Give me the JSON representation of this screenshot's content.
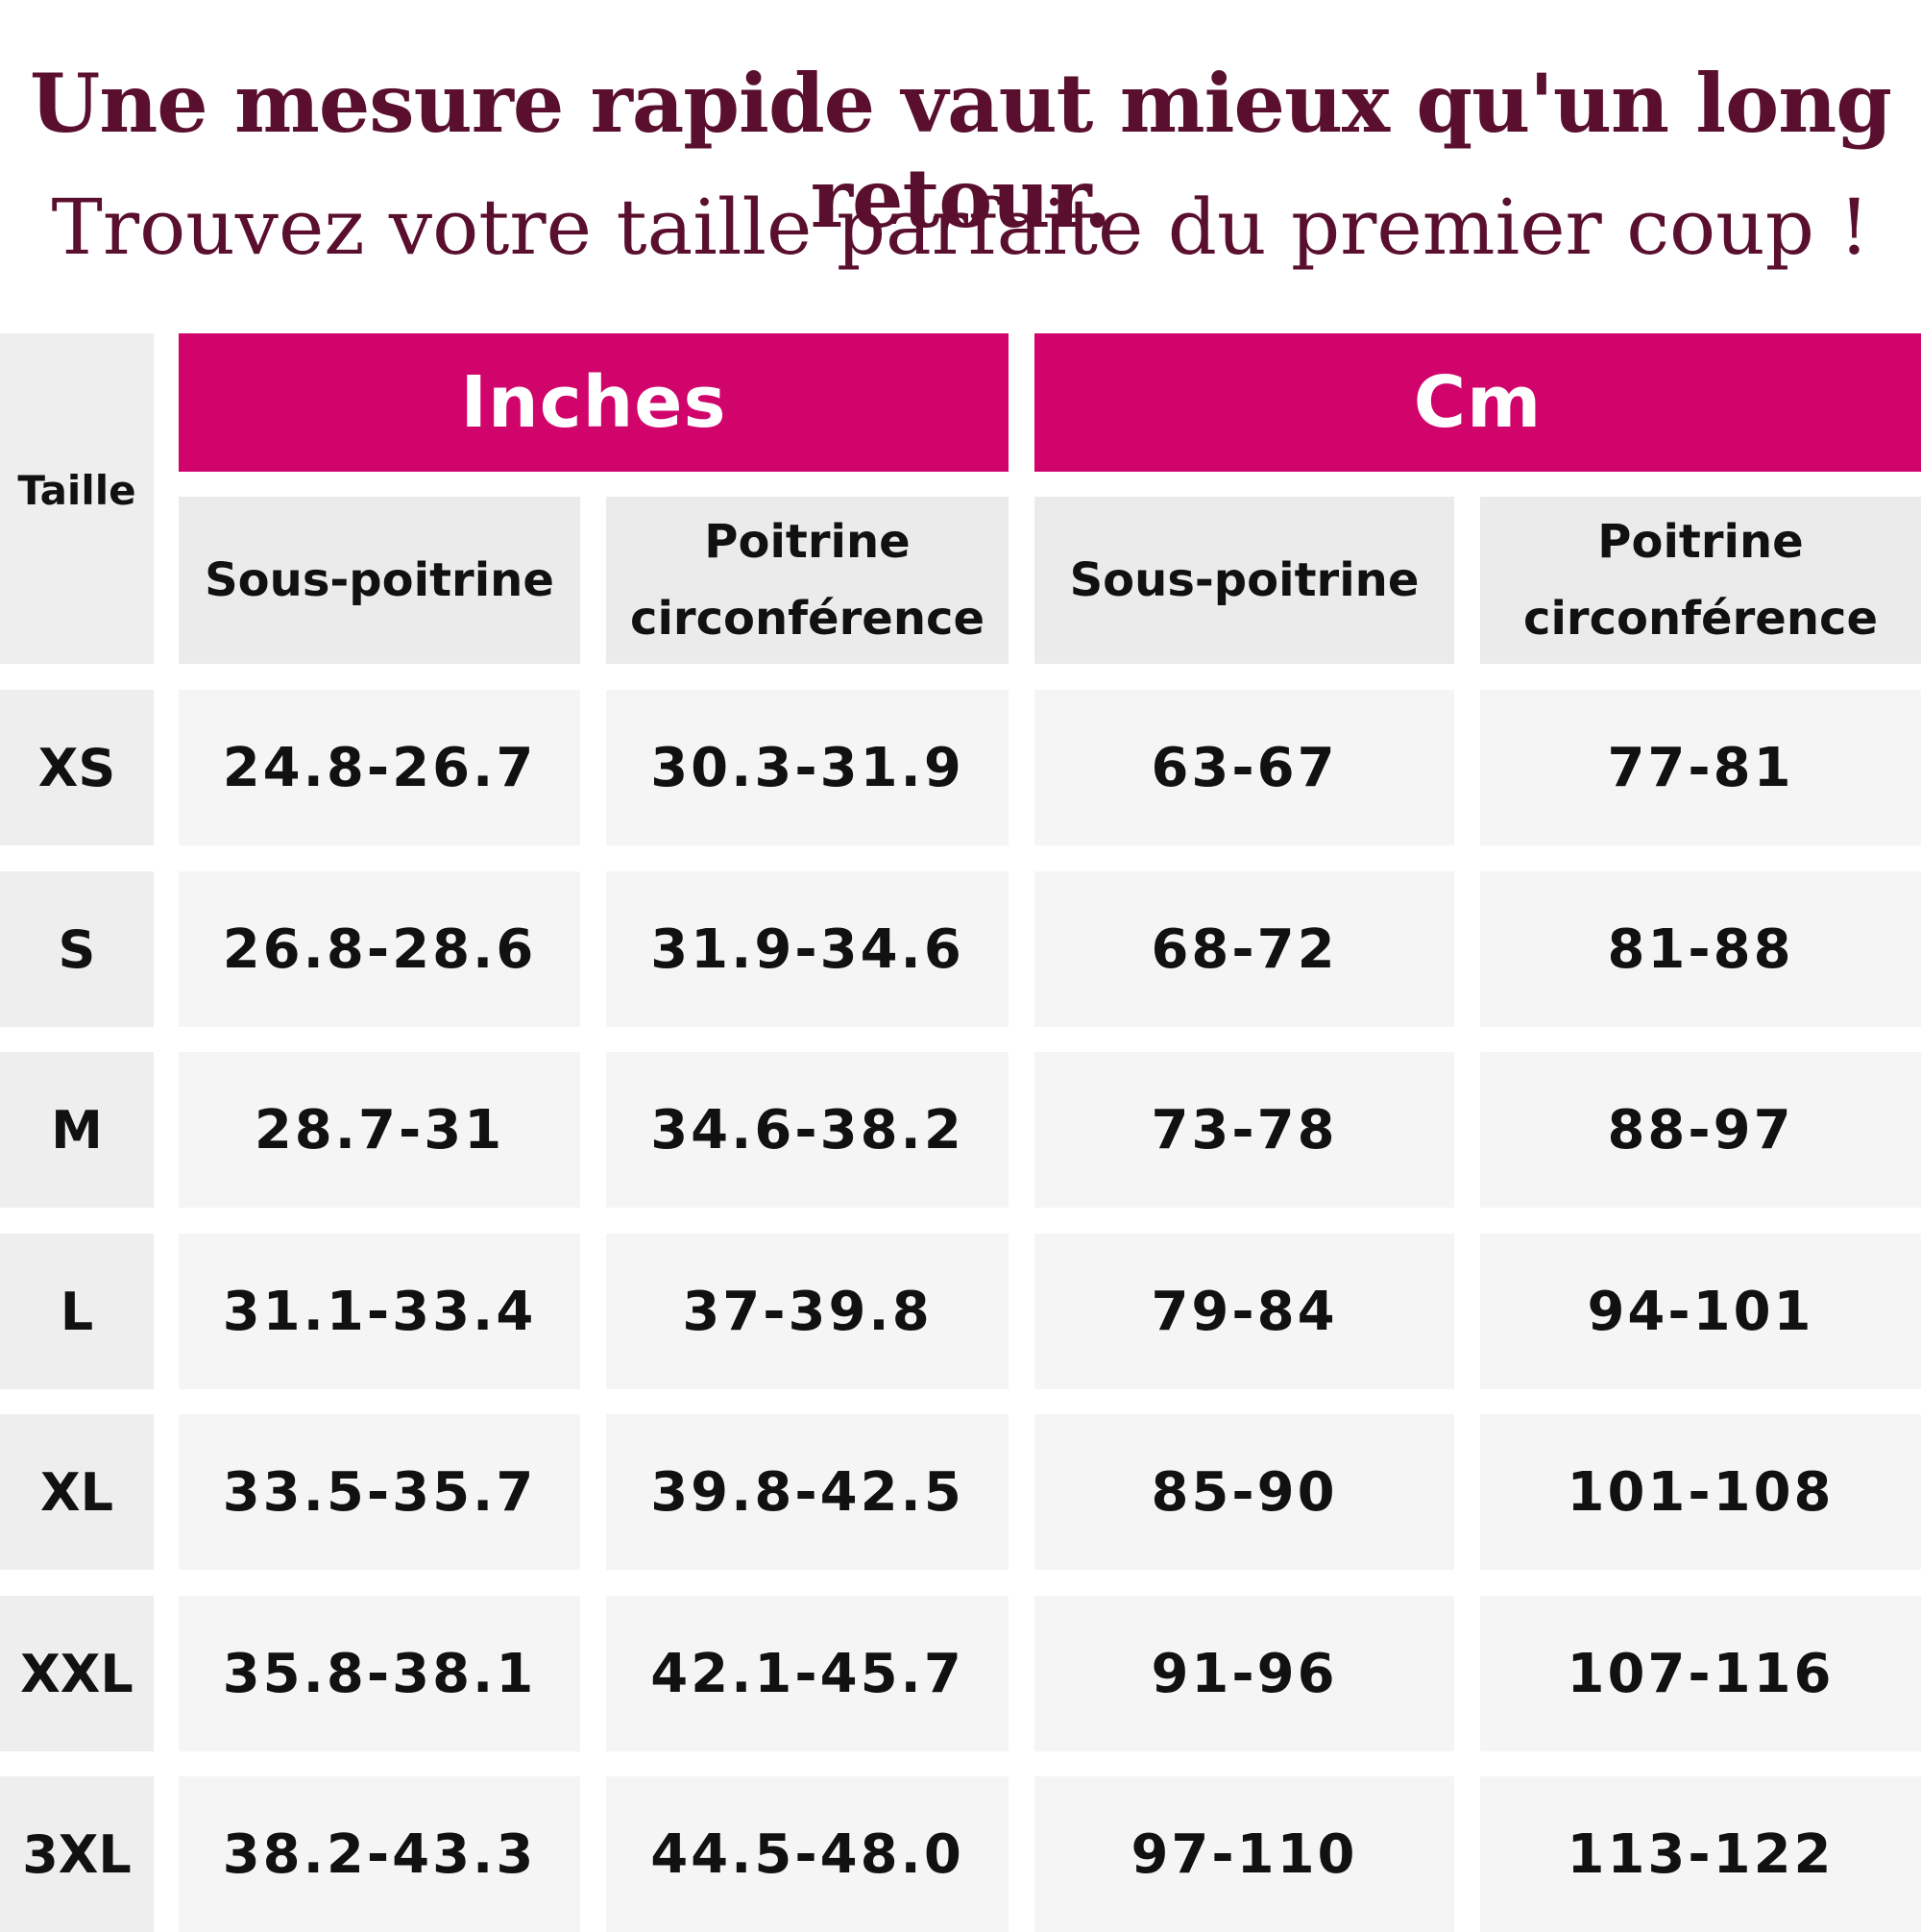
{
  "header": {
    "title": "Une mesure rapide vaut mieux qu'un long retour.",
    "subtitle": "Trouvez votre taille parfaite du premier coup !"
  },
  "table": {
    "size_header": "Taille",
    "groups": [
      "Inches",
      "Cm"
    ],
    "columns": [
      {
        "line1": "Sous-poitrine",
        "line2": ""
      },
      {
        "line1": "Poitrine",
        "line2": "circonférence"
      },
      {
        "line1": "Sous-poitrine",
        "line2": ""
      },
      {
        "line1": "Poitrine",
        "line2": "circonférence"
      }
    ],
    "rows": [
      {
        "size": "XS",
        "values": [
          "24.8-26.7",
          "30.3-31.9",
          "63-67",
          "77-81"
        ]
      },
      {
        "size": "S",
        "values": [
          "26.8-28.6",
          "31.9-34.6",
          "68-72",
          "81-88"
        ]
      },
      {
        "size": "M",
        "values": [
          "28.7-31",
          "34.6-38.2",
          "73-78",
          "88-97"
        ]
      },
      {
        "size": "L",
        "values": [
          "31.1-33.4",
          "37-39.8",
          "79-84",
          "94-101"
        ]
      },
      {
        "size": "XL",
        "values": [
          "33.5-35.7",
          "39.8-42.5",
          "85-90",
          "101-108"
        ]
      },
      {
        "size": "XXL",
        "values": [
          "35.8-38.1",
          "42.1-45.7",
          "91-96",
          "107-116"
        ]
      },
      {
        "size": "3XL",
        "values": [
          "38.2-43.3",
          "44.5-48.0",
          "97-110",
          "113-122"
        ]
      }
    ]
  },
  "colors": {
    "title": "#5a0f2e",
    "band": "#d1046c",
    "header_cell": "#ebebeb",
    "value_cell": "#f5f5f5"
  }
}
